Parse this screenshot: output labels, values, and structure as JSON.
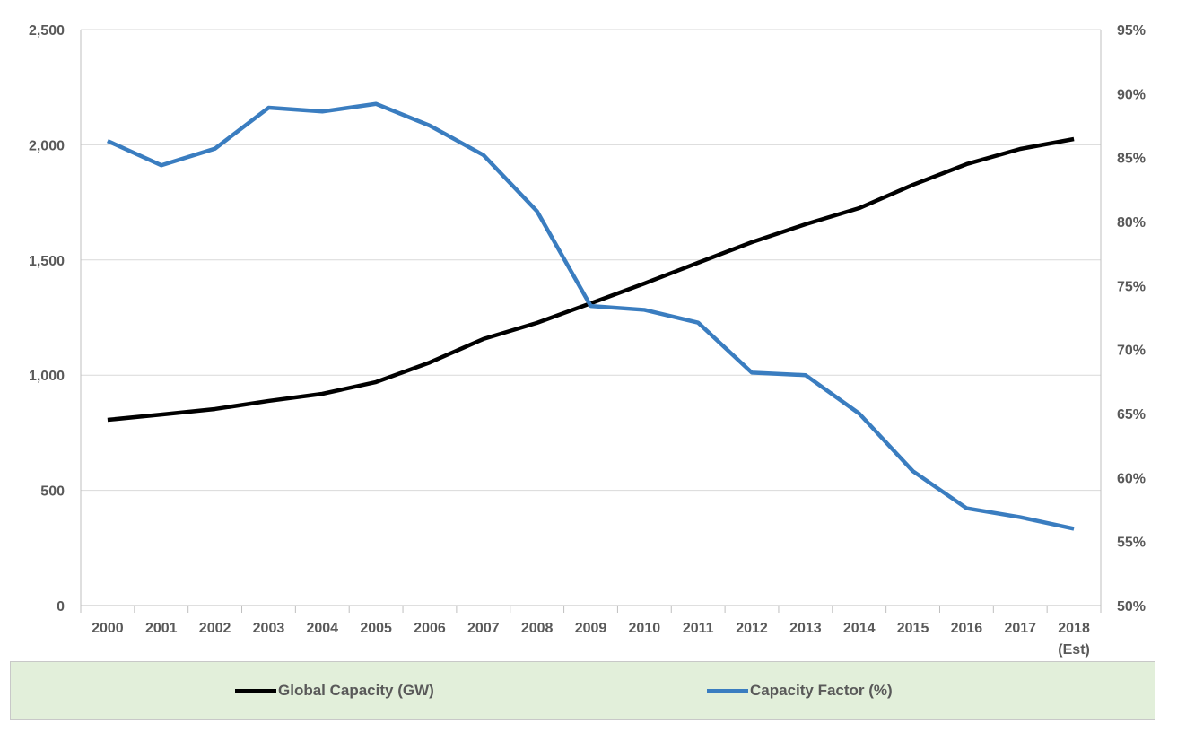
{
  "chart_data": {
    "type": "line",
    "title": "",
    "x": [
      "2000",
      "2001",
      "2002",
      "2003",
      "2004",
      "2005",
      "2006",
      "2007",
      "2008",
      "2009",
      "2010",
      "2011",
      "2012",
      "2013",
      "2014",
      "2015",
      "2016",
      "2017",
      "2018"
    ],
    "x_labels": [
      "2000",
      "2001",
      "2002",
      "2003",
      "2004",
      "2005",
      "2006",
      "2007",
      "2008",
      "2009",
      "2010",
      "2011",
      "2012",
      "2013",
      "2014",
      "2015",
      "2016",
      "2017",
      "2018\n(Est)"
    ],
    "x_sublabel_last": "(Est)",
    "y_left": {
      "min": 0,
      "max": 2500,
      "ticks": [
        0,
        500,
        1000,
        1500,
        2000,
        2500
      ],
      "tick_labels": [
        "0",
        "500",
        "1,000",
        "1,500",
        "2,000",
        "2,500"
      ]
    },
    "y_right": {
      "min": 50,
      "max": 95,
      "ticks": [
        50,
        55,
        60,
        65,
        70,
        75,
        80,
        85,
        90,
        95
      ],
      "tick_labels": [
        "50%",
        "55%",
        "60%",
        "65%",
        "70%",
        "75%",
        "80%",
        "85%",
        "90%",
        "95%"
      ]
    },
    "grid": true,
    "legend_placement": "bottom",
    "series": [
      {
        "name": "Global Capacity (GW)",
        "axis": "left",
        "color": "#000000",
        "values": [
          806,
          829,
          853,
          888,
          919,
          970,
          1055,
          1157,
          1227,
          1312,
          1398,
          1488,
          1577,
          1655,
          1725,
          1826,
          1916,
          1982,
          2025
        ]
      },
      {
        "name": "Capacity Factor (%)",
        "axis": "right",
        "color": "#3a7dc0",
        "values": [
          86.3,
          84.4,
          85.7,
          88.9,
          88.6,
          89.2,
          87.5,
          85.2,
          80.8,
          73.4,
          73.1,
          72.1,
          68.2,
          68.0,
          65.0,
          60.5,
          57.6,
          56.9,
          56.0
        ]
      }
    ]
  }
}
